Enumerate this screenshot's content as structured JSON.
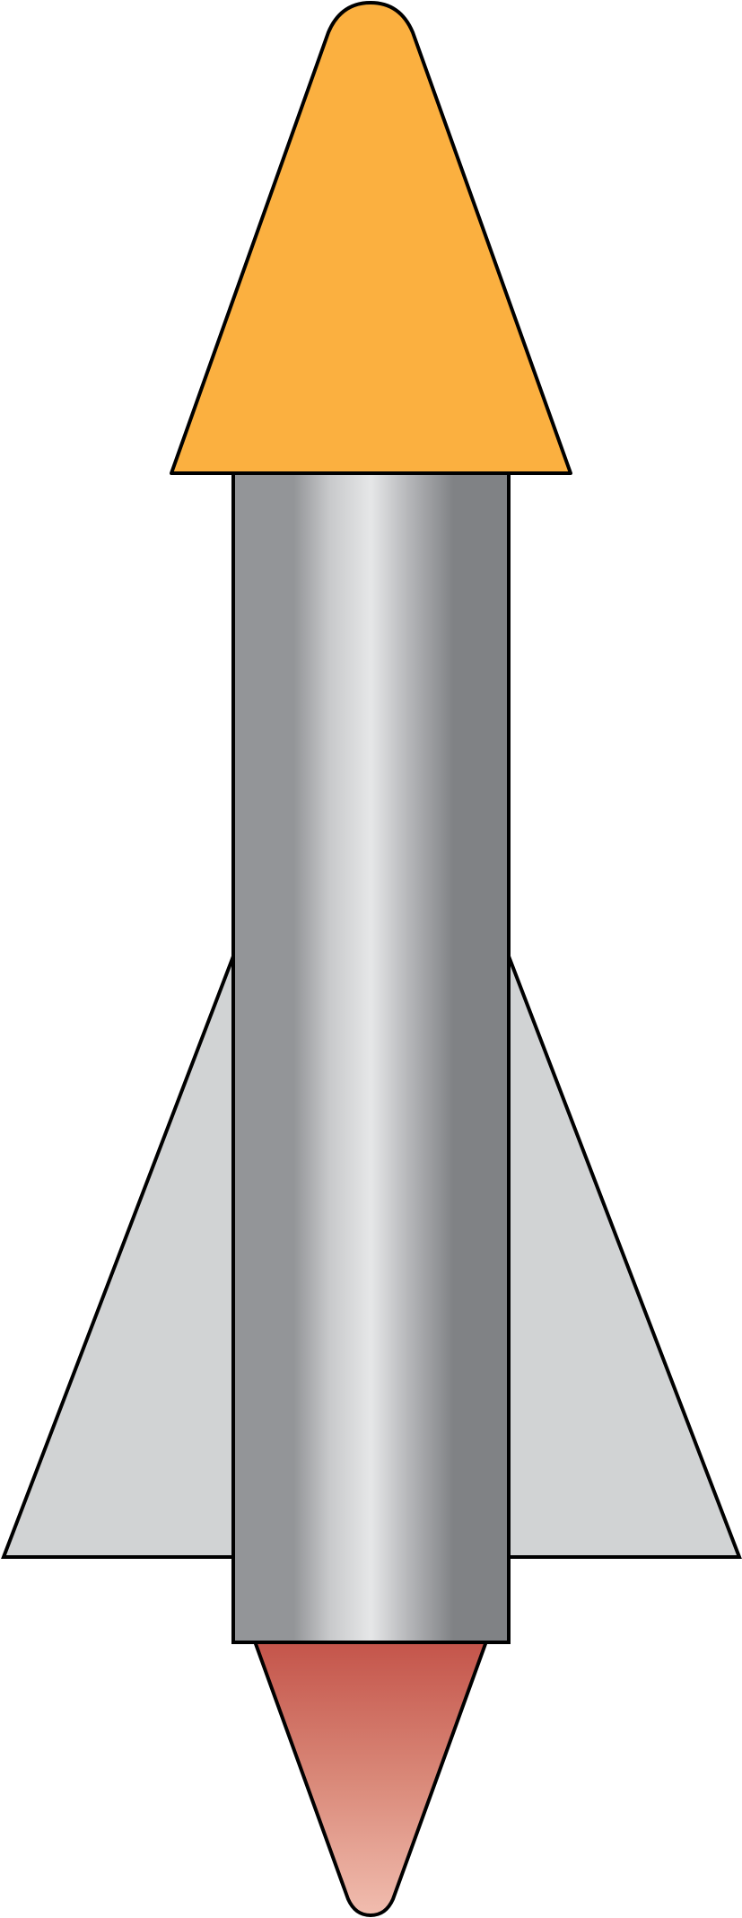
{
  "diagram": {
    "subject": "rocket",
    "parts": [
      {
        "id": "nose-cone",
        "color": "#FBB040"
      },
      {
        "id": "fins",
        "color": "#D1D3D4"
      },
      {
        "id": "body-tube",
        "colors": [
          "#939598",
          "#E6E7E8",
          "#808285"
        ]
      },
      {
        "id": "exhaust-flame",
        "colors": [
          "#C4544A",
          "#F1BDAF"
        ]
      }
    ],
    "outline_color": "#000000",
    "background": "#FFFFFF"
  }
}
